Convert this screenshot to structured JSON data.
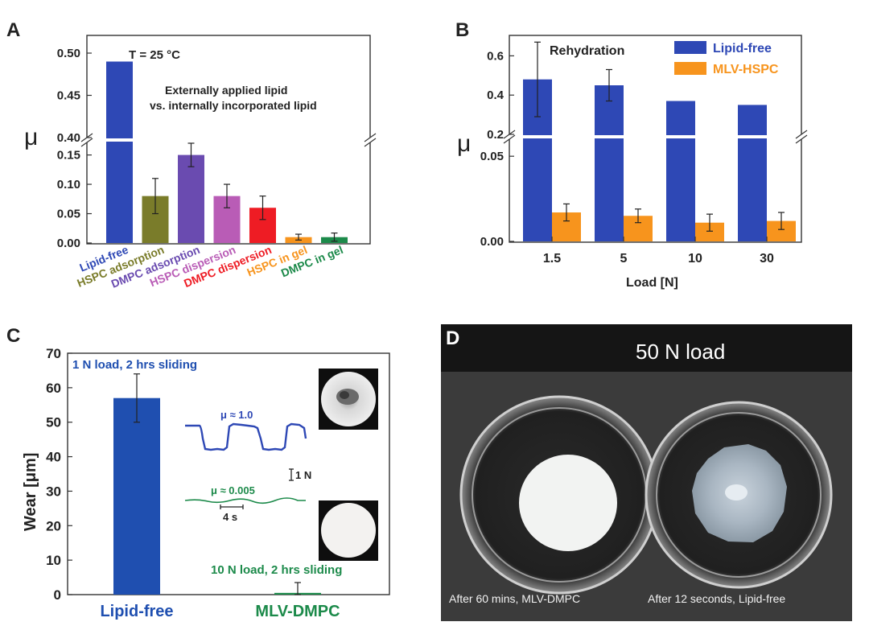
{
  "panels": {
    "A": "A",
    "B": "B",
    "C": "C",
    "D": "D"
  },
  "chart_data": [
    {
      "panel": "A",
      "type": "bar",
      "title": "",
      "ylabel": "μ",
      "annotations": {
        "temp": "T = 25 °C",
        "line1": "Externally applied lipid",
        "line2": "vs. internally incorporated lipid"
      },
      "categories": [
        "Lipid-free",
        "HSPC adsorption",
        "DMPC adsorption",
        "HSPC dispersion",
        "DMPC dispersion",
        "HSPC in gel",
        "DMPC in gel"
      ],
      "values": [
        0.49,
        0.08,
        0.15,
        0.08,
        0.06,
        0.01,
        0.01
      ],
      "errors": [
        null,
        0.03,
        0.02,
        0.02,
        0.02,
        0.005,
        0.007
      ],
      "colors": [
        "#2e48b5",
        "#7a7c2a",
        "#6a4bb0",
        "#b95cb6",
        "#ee1c24",
        "#f7941d",
        "#1c8a4a"
      ],
      "label_colors": [
        "#2e48b5",
        "#7a7c2a",
        "#6a4bb0",
        "#b95cb6",
        "#ee1c24",
        "#f7941d",
        "#1c8a4a"
      ],
      "y_lower_ticks": [
        "0.00",
        "0.05",
        "0.10",
        "0.15"
      ],
      "y_upper_ticks": [
        "0.40",
        "0.45",
        "0.50"
      ],
      "ylim_lower": [
        0,
        0.17
      ],
      "ylim_upper": [
        0.4,
        0.52
      ],
      "axis_break": true
    },
    {
      "panel": "B",
      "type": "bar",
      "title": "",
      "xlabel": "Load [N]",
      "ylabel": "μ",
      "annotation": "Rehydration",
      "categories": [
        "1.5",
        "5",
        "10",
        "30"
      ],
      "series": [
        {
          "name": "Lipid-free",
          "color": "#2e48b5",
          "values": [
            0.48,
            0.45,
            0.37,
            0.35
          ],
          "errors": [
            0.19,
            0.08,
            null,
            null
          ]
        },
        {
          "name": "MLV-HSPC",
          "color": "#f7941d",
          "values": [
            0.017,
            0.015,
            0.011,
            0.012
          ],
          "errors": [
            0.005,
            0.004,
            0.005,
            0.005
          ]
        }
      ],
      "y_lower_ticks": [
        "0.00",
        "0.05"
      ],
      "y_upper_ticks": [
        "0.2",
        "0.4",
        "0.6"
      ],
      "ylim_lower": [
        0,
        0.06
      ],
      "ylim_upper": [
        0.2,
        0.7
      ],
      "axis_break": true,
      "legend_position": "top-right"
    },
    {
      "panel": "C",
      "type": "bar",
      "title": "",
      "ylabel": "Wear [μm]",
      "categories": [
        "Lipid-free",
        "MLV-DMPC"
      ],
      "values": [
        57,
        0.5
      ],
      "errors": [
        7,
        3
      ],
      "colors": [
        "#1f4fb0",
        "#1c8a4a"
      ],
      "label_colors": [
        "#1f4fb0",
        "#1c8a4a"
      ],
      "y_ticks": [
        "0",
        "10",
        "20",
        "30",
        "40",
        "50",
        "60",
        "70"
      ],
      "ylim": [
        0,
        70
      ],
      "annotations": {
        "lipid_free_condition": "1 N load, 2 hrs sliding",
        "dmpc_condition": "10 N load, 2 hrs sliding",
        "mu_high": "μ ≈ 1.0",
        "mu_low": "μ ≈ 0.005",
        "scale_force": "1 N",
        "scale_time": "4 s"
      }
    }
  ],
  "panel_d": {
    "title": "50 N load",
    "caption_left": "After 60 mins, MLV-DMPC",
    "caption_right": "After 12 seconds, Lipid-free"
  }
}
